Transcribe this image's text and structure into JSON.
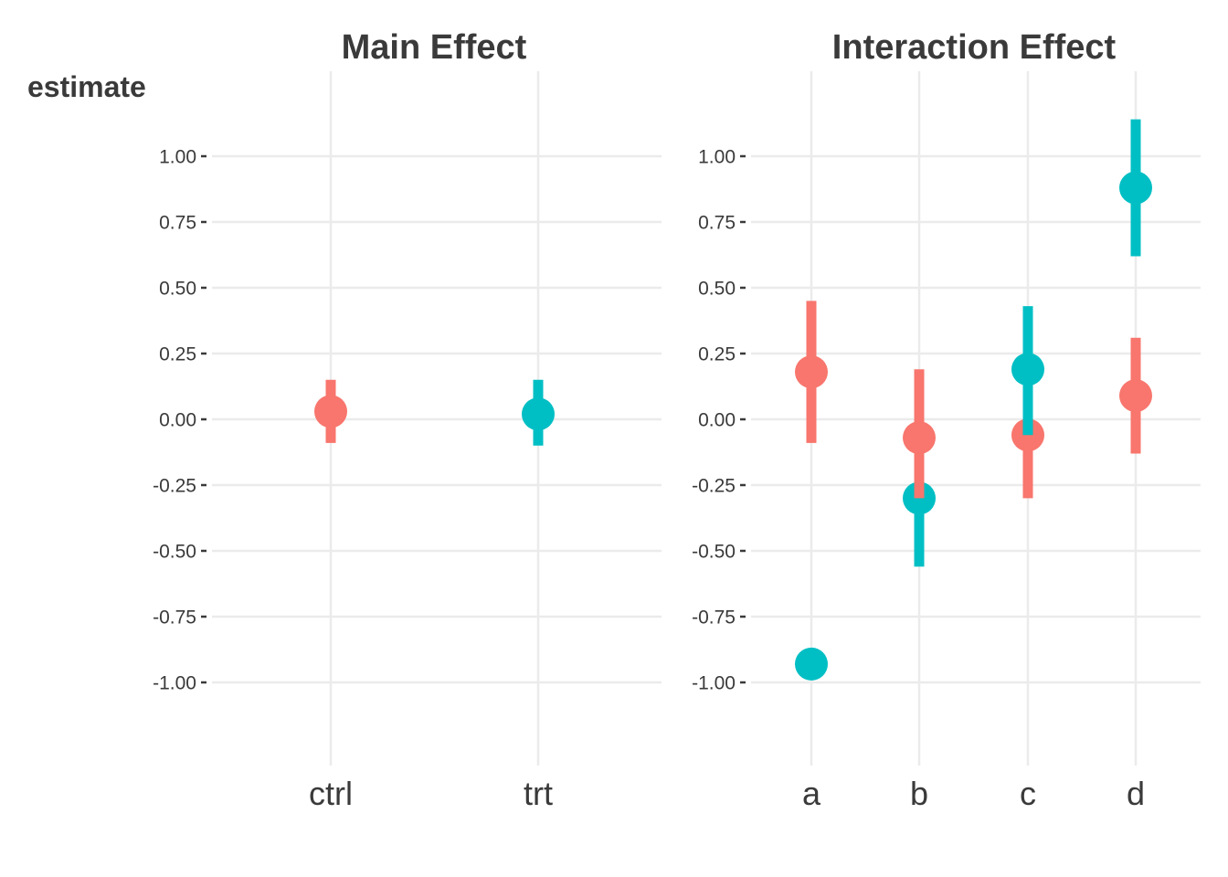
{
  "chart_data": [
    {
      "type": "scatter",
      "title": "Main Effect",
      "ylabel": "estimate",
      "xlabel": "",
      "categories": [
        "ctrl",
        "trt"
      ],
      "ylim": [
        -1.25,
        1.25
      ],
      "yticks": [
        1.0,
        0.75,
        0.5,
        0.25,
        0.0,
        -0.25,
        -0.5,
        -0.75,
        -1.0
      ],
      "ytick_labels": [
        "1.00",
        "0.75",
        "0.50",
        "0.25",
        "0.00",
        "-0.25",
        "-0.50",
        "-0.75",
        "-1.00"
      ],
      "grid": true,
      "legend": "none",
      "points": [
        {
          "category": "ctrl",
          "group": 1,
          "estimate": 0.03,
          "lower": -0.09,
          "upper": 0.15,
          "color": "#f8766d"
        },
        {
          "category": "trt",
          "group": 2,
          "estimate": 0.02,
          "lower": -0.1,
          "upper": 0.15,
          "color": "#00bfc4"
        }
      ]
    },
    {
      "type": "scatter",
      "title": "Interaction Effect",
      "ylabel": "",
      "xlabel": "",
      "categories": [
        "a",
        "b",
        "c",
        "d"
      ],
      "ylim": [
        -1.25,
        1.25
      ],
      "yticks": [
        1.0,
        0.75,
        0.5,
        0.25,
        0.0,
        -0.25,
        -0.5,
        -0.75,
        -1.0
      ],
      "ytick_labels": [
        "1.00",
        "0.75",
        "0.50",
        "0.25",
        "0.00",
        "-0.25",
        "-0.50",
        "-0.75",
        "-1.00"
      ],
      "grid": true,
      "legend": "none",
      "points": [
        {
          "category": "a",
          "group": 1,
          "estimate": 0.18,
          "lower": -0.09,
          "upper": 0.45,
          "color": "#f8766d"
        },
        {
          "category": "a",
          "group": 2,
          "estimate": -0.93,
          "lower": null,
          "upper": null,
          "color": "#00bfc4"
        },
        {
          "category": "b",
          "group": 2,
          "estimate": -0.3,
          "lower": -0.56,
          "upper": -0.04,
          "color": "#00bfc4"
        },
        {
          "category": "b",
          "group": 1,
          "estimate": -0.07,
          "lower": -0.3,
          "upper": 0.19,
          "color": "#f8766d"
        },
        {
          "category": "c",
          "group": 1,
          "estimate": -0.06,
          "lower": -0.3,
          "upper": 0.17,
          "color": "#f8766d"
        },
        {
          "category": "c",
          "group": 2,
          "estimate": 0.19,
          "lower": -0.06,
          "upper": 0.43,
          "color": "#00bfc4"
        },
        {
          "category": "d",
          "group": 1,
          "estimate": 0.09,
          "lower": -0.13,
          "upper": 0.31,
          "color": "#f8766d"
        },
        {
          "category": "d",
          "group": 2,
          "estimate": 0.88,
          "lower": 0.62,
          "upper": 1.14,
          "color": "#00bfc4"
        }
      ]
    }
  ]
}
